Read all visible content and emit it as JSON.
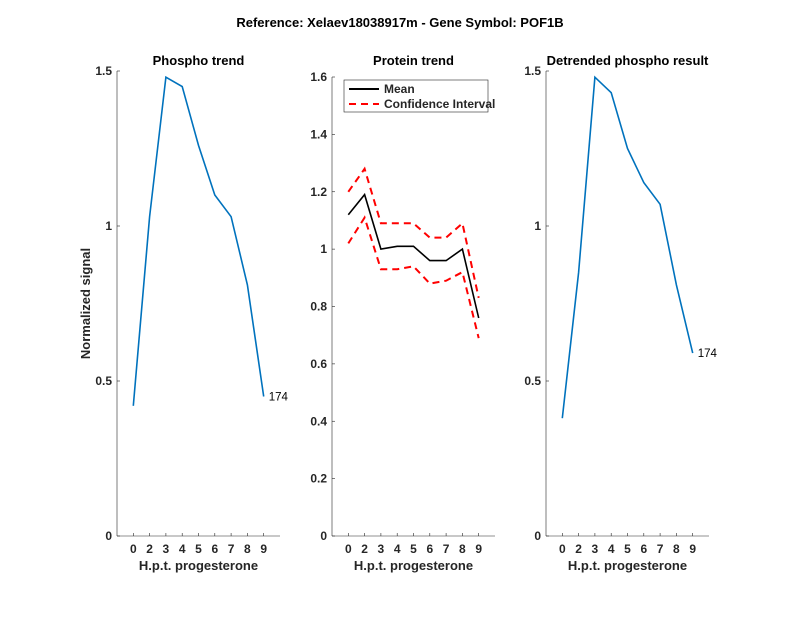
{
  "title": "Reference:  Xelaev18038917m - Gene Symbol:  POF1B",
  "chart_data": [
    {
      "type": "line",
      "title": "Phospho trend",
      "xlabel": "H.p.t. progesterone",
      "ylabel": "Normalized signal",
      "categories": [
        "0",
        "2",
        "3",
        "4",
        "5",
        "6",
        "7",
        "8",
        "9"
      ],
      "ylim": [
        0,
        1.5
      ],
      "yticks": [
        "0",
        "0.5",
        "1",
        "1.5"
      ],
      "grid": false,
      "series": [
        {
          "values": [
            0.42,
            1.03,
            1.48,
            1.45,
            1.26,
            1.1,
            1.03,
            0.81,
            0.45
          ],
          "color": "#0072BD",
          "style": "solid"
        }
      ],
      "annotation": "174"
    },
    {
      "type": "line",
      "title": "Protein trend",
      "xlabel": "H.p.t. progesterone",
      "categories": [
        "0",
        "2",
        "3",
        "4",
        "5",
        "6",
        "7",
        "8",
        "9"
      ],
      "ylim": [
        0,
        1.6
      ],
      "yticks": [
        "0",
        "0.2",
        "0.4",
        "0.6",
        "0.8",
        "1",
        "1.2",
        "1.4",
        "1.6"
      ],
      "grid": false,
      "legend_position": "top",
      "series": [
        {
          "name": "Mean",
          "values": [
            1.12,
            1.19,
            1.0,
            1.01,
            1.01,
            0.96,
            0.96,
            1.0,
            0.76
          ],
          "color": "#000000",
          "style": "solid"
        },
        {
          "name": "Confidence Interval",
          "values": [
            1.2,
            1.28,
            1.09,
            1.09,
            1.09,
            1.04,
            1.04,
            1.09,
            0.83
          ],
          "color": "#FF0000",
          "style": "dashed"
        },
        {
          "values": [
            1.02,
            1.11,
            0.93,
            0.93,
            0.94,
            0.88,
            0.89,
            0.92,
            0.69
          ],
          "color": "#FF0000",
          "style": "dashed"
        }
      ]
    },
    {
      "type": "line",
      "title": "Detrended phospho result",
      "xlabel": "H.p.t. progesterone",
      "categories": [
        "0",
        "2",
        "3",
        "4",
        "5",
        "6",
        "7",
        "8",
        "9"
      ],
      "ylim": [
        0,
        1.5
      ],
      "yticks": [
        "0",
        "0.5",
        "1",
        "1.5"
      ],
      "grid": false,
      "series": [
        {
          "values": [
            0.38,
            0.85,
            1.48,
            1.43,
            1.25,
            1.14,
            1.07,
            0.81,
            0.59
          ],
          "color": "#0072BD",
          "style": "solid"
        }
      ],
      "annotation": "174"
    }
  ]
}
